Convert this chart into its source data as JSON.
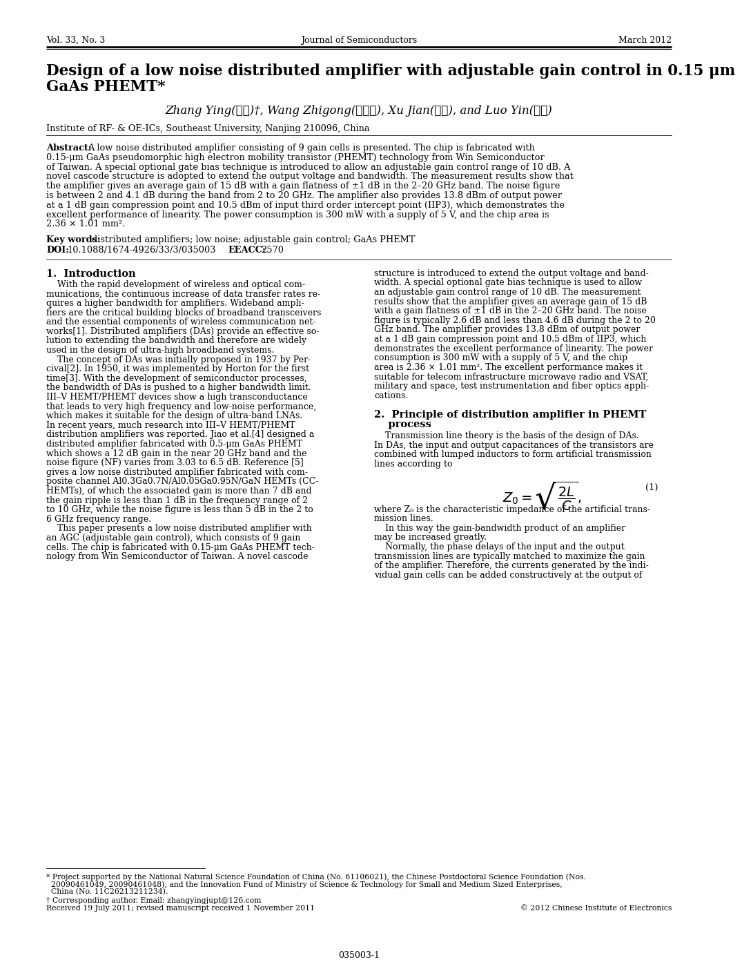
{
  "header_left": "Vol. 33, No. 3",
  "header_center": "Journal of Semiconductors",
  "header_right": "March 2012",
  "title_line1": "Design of a low noise distributed amplifier with adjustable gain control in 0.15 μm",
  "title_line2": "GaAs PHEMT*",
  "author_line": "Zhang Ying(张瑛)†, Wang Zhigong(王志功), Xu Jian(徐建), and Luo Yin(罗寅)",
  "affiliation": "Institute of RF- & OE-ICs, Southeast University, Nanjing 210096, China",
  "abstract_text": "A low noise distributed amplifier consisting of 9 gain cells is presented. The chip is fabricated with 0.15-μm GaAs pseudomorphic high electron mobility transistor (PHEMT) technology from Win Semiconductor of Taiwan. A special optional gate bias technique is introduced to allow an adjustable gain control range of 10 dB. A novel cascode structure is adopted to extend the output voltage and bandwidth. The measurement results show that the amplifier gives an average gain of 15 dB with a gain flatness of ±1 dB in the 2–20 GHz band. The noise figure is between 2 and 4.1 dB during the band from 2 to 20 GHz. The amplifier also provides 13.8 dBm of output power at a 1 dB gain compression point and 10.5 dBm of input third order intercept point (IIP3), which demonstrates the excellent performance of linearity. The power consumption is 300 mW with a supply of 5 V, and the chip area is 2.36 × 1.01 mm².",
  "keywords_text": "distributed amplifiers; low noise; adjustable gain control; GaAs PHEMT",
  "doi_text": "10.1088/1674-4926/33/3/035003",
  "eeacc_text": "2570",
  "col1_lines": [
    "    With the rapid development of wireless and optical com-",
    "munications, the continuous increase of data transfer rates re-",
    "quires a higher bandwidth for amplifiers. Wideband ampli-",
    "fiers are the critical building blocks of broadband transceivers",
    "and the essential components of wireless communication net-",
    "works[1]. Distributed amplifiers (DAs) provide an effective so-",
    "lution to extending the bandwidth and therefore are widely",
    "used in the design of ultra-high broadband systems.",
    "    The concept of DAs was initially proposed in 1937 by Per-",
    "cival[2]. In 1950, it was implemented by Horton for the first",
    "time[3]. With the development of semiconductor processes,",
    "the bandwidth of DAs is pushed to a higher bandwidth limit.",
    "III–V HEMT/PHEMT devices show a high transconductance",
    "that leads to very high frequency and low-noise performance,",
    "which makes it suitable for the design of ultra-band LNAs.",
    "In recent years, much research into III–V HEMT/PHEMT",
    "distribution amplifiers was reported. Jiao et al.[4] designed a",
    "distributed amplifier fabricated with 0.5-μm GaAs PHEMT",
    "which shows a 12 dB gain in the near 20 GHz band and the",
    "noise figure (NF) varies from 3.03 to 6.5 dB. Reference [5]",
    "gives a low noise distributed amplifier fabricated with com-",
    "posite channel Al0.3Ga0.7N/Al0.05Ga0.95N/GaN HEMTs (CC-",
    "HEMTs), of which the associated gain is more than 7 dB and",
    "the gain ripple is less than 1 dB in the frequency range of 2",
    "to 10 GHz, while the noise figure is less than 5 dB in the 2 to",
    "6 GHz frequency range.",
    "    This paper presents a low noise distributed amplifier with",
    "an AGC (adjustable gain control), which consists of 9 gain",
    "cells. The chip is fabricated with 0.15-μm GaAs PHEMT tech-",
    "nology from Win Semiconductor of Taiwan. A novel cascode"
  ],
  "col2_lines_sec1": [
    "structure is introduced to extend the output voltage and band-",
    "width. A special optional gate bias technique is used to allow",
    "an adjustable gain control range of 10 dB. The measurement",
    "results show that the amplifier gives an average gain of 15 dB",
    "with a gain flatness of ±1 dB in the 2–20 GHz band. The noise",
    "figure is typically 2.6 dB and less than 4.6 dB during the 2 to 20",
    "GHz band. The amplifier provides 13.8 dBm of output power",
    "at a 1 dB gain compression point and 10.5 dBm of IIP3, which",
    "demonstrates the excellent performance of linearity. The power",
    "consumption is 300 mW with a supply of 5 V, and the chip",
    "area is 2.36 × 1.01 mm². The excellent performance makes it",
    "suitable for telecom infrastructure microwave radio and VSAT,",
    "military and space, test instrumentation and fiber optics appli-",
    "cations."
  ],
  "sec2_title_line1": "2.  Principle of distribution amplifier in PHEMT",
  "sec2_title_line2": "    process",
  "sec2_body_lines": [
    "    Transmission line theory is the basis of the design of DAs.",
    "In DAs, the input and output capacitances of the transistors are",
    "combined with lumped inductors to form artificial transmission",
    "lines according to"
  ],
  "sec2_cont_lines": [
    "where Z0 is the characteristic impedance of the artificial trans-",
    "mission lines.",
    "    In this way the gain-bandwidth product of an amplifier",
    "may be increased greatly.",
    "    Normally, the phase delays of the input and the output",
    "transmission lines are typically matched to maximize the gain",
    "of the amplifier. Therefore, the currents generated by the indi-",
    "vidual gain cells can be added constructively at the output of"
  ],
  "fn1": "* Project supported by the National Natural Science Foundation of China (No. 61106021), the Chinese Postdoctoral Science Foundation (Nos.",
  "fn2": "  20090461049, 20090461048), and the Innovation Fund of Ministry of Science & Technology for Small and Medium Sized Enterprises,",
  "fn3": "  China (No. 11C26213211234).",
  "fn4": "† Corresponding author. Email: zhangyingjupt@126.com",
  "fn5": "Received 19 July 2011; revised manuscript received 1 November 2011",
  "fn6": "© 2012 Chinese Institute of Electronics",
  "page_number": "035003-1",
  "bg": "#ffffff"
}
